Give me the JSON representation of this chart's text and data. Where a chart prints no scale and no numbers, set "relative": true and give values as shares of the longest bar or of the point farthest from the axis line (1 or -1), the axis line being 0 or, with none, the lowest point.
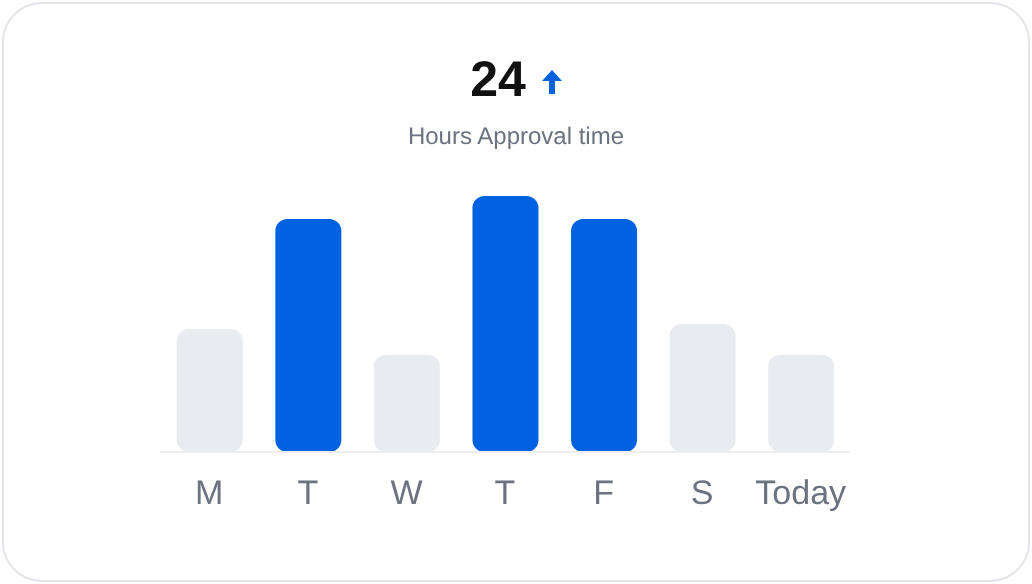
{
  "chart_data": {
    "type": "bar",
    "title": "24",
    "subtitle": "Hours Approval time",
    "categories": [
      "M",
      "T",
      "W",
      "T",
      "F",
      "S",
      "Today"
    ],
    "relative": true,
    "values": [
      0.48,
      0.91,
      0.38,
      1,
      0.91,
      0.5,
      0.38
    ],
    "colors": [
      "#e8ebf0",
      "#0062e0",
      "#e8ebf0",
      "#0062e0",
      "#0062e0",
      "#e8ebf0",
      "#e8ebf0"
    ],
    "grid": false,
    "legend": false
  }
}
